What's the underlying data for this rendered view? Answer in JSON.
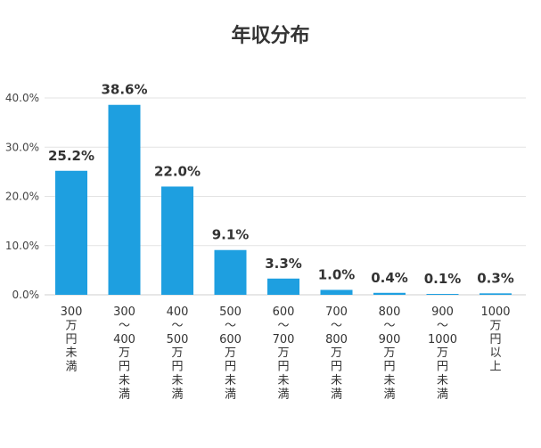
{
  "chart_data": {
    "type": "bar",
    "title": "年収分布",
    "categories": [
      "300 万円未満",
      "300 ～ 400 万円未満",
      "400 ～ 500 万円未満",
      "500 ～ 600 万円未満",
      "600 ～ 700 万円未満",
      "700 ～ 800 万円未満",
      "800 ～ 900 万円未満",
      "900 ～ 1000 万円未満",
      "1000 万円以上"
    ],
    "category_label_lines": [
      [
        "300",
        "万",
        "円",
        "未",
        "満"
      ],
      [
        "300",
        "～",
        "400",
        "万",
        "円",
        "未",
        "満"
      ],
      [
        "400",
        "～",
        "500",
        "万",
        "円",
        "未",
        "満"
      ],
      [
        "500",
        "～",
        "600",
        "万",
        "円",
        "未",
        "満"
      ],
      [
        "600",
        "～",
        "700",
        "万",
        "円",
        "未",
        "満"
      ],
      [
        "700",
        "～",
        "800",
        "万",
        "円",
        "未",
        "満"
      ],
      [
        "800",
        "～",
        "900",
        "万",
        "円",
        "未",
        "満"
      ],
      [
        "900",
        "～",
        "1000",
        "万",
        "円",
        "未",
        "満"
      ],
      [
        "1000",
        "万",
        "円",
        "以",
        "上"
      ]
    ],
    "values": [
      25.2,
      38.6,
      22.0,
      9.1,
      3.3,
      1.0,
      0.4,
      0.1,
      0.3
    ],
    "data_labels": [
      "25.2%",
      "38.6%",
      "22.0%",
      "9.1%",
      "3.3%",
      "1.0%",
      "0.4%",
      "0.1%",
      "0.3%"
    ],
    "ylim": [
      0,
      40
    ],
    "yticks": [
      0,
      10,
      20,
      30,
      40
    ],
    "ytick_labels": [
      "0.0%",
      "10.0%",
      "20.0%",
      "30.0%",
      "40.0%"
    ],
    "xlabel": "",
    "ylabel": "",
    "grid": true,
    "legend": "none",
    "colors": {
      "bar": "#1E9FE0",
      "grid": "#E3E3E3",
      "text": "#333333"
    }
  }
}
